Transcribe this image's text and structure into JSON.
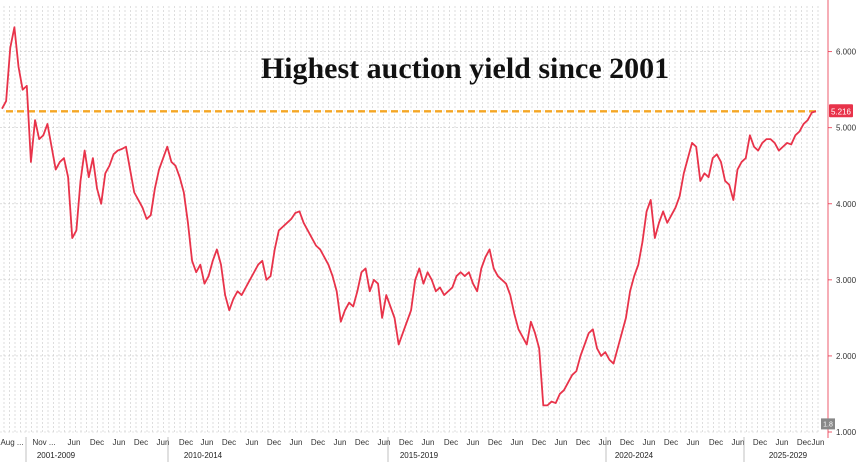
{
  "chart_data": {
    "type": "line",
    "title": "Highest auction yield since 2001",
    "xlabel": "",
    "ylabel": "",
    "ylim": [
      1.0,
      6.6
    ],
    "y_ticks": [
      "6.000",
      "5.000",
      "4.000",
      "3.000",
      "2.000",
      "1.000"
    ],
    "y_tick_values": [
      6,
      5,
      4,
      3,
      2,
      1
    ],
    "grid": true,
    "x_tick_labels": [
      "Aug ...",
      "Nov ...",
      "Jun",
      "Dec",
      "Jun",
      "Dec",
      "Jun",
      "Dec",
      "Jun",
      "Dec",
      "Jun",
      "Dec",
      "Jun",
      "Dec",
      "Jun",
      "Dec",
      "Jun",
      "Dec",
      "Jun",
      "Dec",
      "Jun",
      "Dec",
      "Jun",
      "Dec",
      "Jun",
      "Dec",
      "Jun",
      "Dec",
      "Jun",
      "Dec",
      "Jun",
      "Dec",
      "Jun",
      "Dec",
      "Jun",
      "Dec",
      "Jun"
    ],
    "x_era_labels": [
      "2001-2009",
      "2010-2014",
      "2015-2019",
      "2020-2024",
      "2025-2029"
    ],
    "series": [
      {
        "color": "#e8334a",
        "values": [
          5.25,
          5.35,
          6.05,
          6.32,
          5.8,
          5.5,
          5.55,
          4.55,
          5.1,
          4.85,
          4.9,
          5.05,
          4.75,
          4.45,
          4.55,
          4.6,
          4.35,
          3.55,
          3.65,
          4.3,
          4.7,
          4.35,
          4.6,
          4.2,
          4.0,
          4.4,
          4.5,
          4.65,
          4.7,
          4.72,
          4.75,
          4.45,
          4.15,
          4.05,
          3.95,
          3.8,
          3.85,
          4.2,
          4.45,
          4.6,
          4.75,
          4.55,
          4.5,
          4.35,
          4.15,
          3.75,
          3.25,
          3.1,
          3.2,
          2.95,
          3.05,
          3.25,
          3.4,
          3.2,
          2.8,
          2.6,
          2.75,
          2.85,
          2.8,
          2.9,
          3.0,
          3.1,
          3.2,
          3.25,
          3.0,
          3.05,
          3.4,
          3.65,
          3.7,
          3.75,
          3.8,
          3.88,
          3.9,
          3.75,
          3.65,
          3.55,
          3.45,
          3.4,
          3.3,
          3.2,
          3.05,
          2.85,
          2.45,
          2.6,
          2.7,
          2.65,
          2.85,
          3.1,
          3.15,
          2.85,
          3.0,
          2.95,
          2.5,
          2.8,
          2.65,
          2.5,
          2.15,
          2.3,
          2.45,
          2.6,
          3.0,
          3.15,
          2.95,
          3.1,
          3.0,
          2.85,
          2.9,
          2.8,
          2.85,
          2.9,
          3.05,
          3.1,
          3.05,
          3.1,
          2.95,
          2.85,
          3.15,
          3.3,
          3.4,
          3.15,
          3.05,
          3.0,
          2.95,
          2.8,
          2.55,
          2.35,
          2.25,
          2.15,
          2.45,
          2.3,
          2.1,
          1.35,
          1.35,
          1.4,
          1.38,
          1.5,
          1.55,
          1.65,
          1.75,
          1.8,
          2.0,
          2.15,
          2.3,
          2.35,
          2.1,
          2.0,
          2.05,
          1.95,
          1.9,
          2.1,
          2.3,
          2.5,
          2.85,
          3.05,
          3.2,
          3.5,
          3.9,
          4.05,
          3.55,
          3.75,
          3.9,
          3.75,
          3.85,
          3.95,
          4.1,
          4.4,
          4.6,
          4.8,
          4.75,
          4.3,
          4.4,
          4.35,
          4.6,
          4.65,
          4.55,
          4.3,
          4.25,
          4.05,
          4.45,
          4.55,
          4.6,
          4.9,
          4.75,
          4.7,
          4.8,
          4.85,
          4.85,
          4.8,
          4.7,
          4.75,
          4.8,
          4.78,
          4.9,
          4.95,
          5.05,
          5.1,
          5.2,
          5.216
        ]
      }
    ],
    "reference_line": {
      "value": 5.216,
      "color": "#f5a623",
      "style": "dashed"
    },
    "last_value_label": "5.216",
    "last_value_color": "#e8334a",
    "bottom_right_label": "1.8",
    "bottom_right_label_color": "#888888"
  }
}
